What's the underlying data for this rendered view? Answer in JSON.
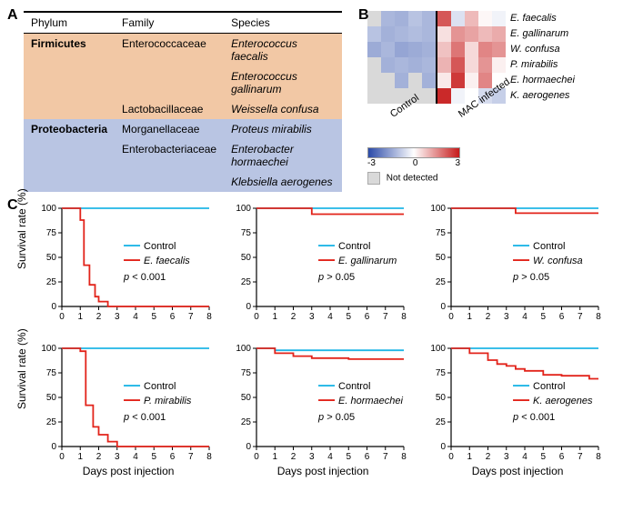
{
  "panel_labels": {
    "A": "A",
    "B": "B",
    "C": "C"
  },
  "table": {
    "headers": [
      "Phylum",
      "Family",
      "Species"
    ],
    "groups": [
      {
        "bg": "#f2c8a5",
        "rows": [
          {
            "phylum": "Firmicutes",
            "family": "Enterococcaceae",
            "species": "Enterococcus faecalis"
          },
          {
            "phylum": "",
            "family": "",
            "species": "Enterococcus gallinarum"
          },
          {
            "phylum": "",
            "family": "Lactobacillaceae",
            "species": "Weissella confusa"
          }
        ]
      },
      {
        "bg": "#b9c5e3",
        "rows": [
          {
            "phylum": "Proteobacteria",
            "family": "Morganellaceae",
            "species": "Proteus mirabilis"
          },
          {
            "phylum": "",
            "family": "Enterobacteriaceae",
            "species": "Enterobacter hormaechei"
          },
          {
            "phylum": "",
            "family": "",
            "species": "Klebsiella aerogenes"
          }
        ]
      }
    ]
  },
  "heatmap": {
    "row_labels": [
      "E. faecalis",
      "E. gallinarum",
      "W. confusa",
      "P. mirabilis",
      "E. hormaechei",
      "K. aerogenes"
    ],
    "col_groups": [
      {
        "label": "Control",
        "n": 5
      },
      {
        "label": "MAC infected",
        "n": 5
      }
    ],
    "not_detected_color": "#d9d9d9",
    "not_detected_label": "Not detected",
    "scale": {
      "min": -3,
      "mid": 0,
      "max": 3,
      "min_color": "#2b4aa8",
      "mid_color": "#ffffff",
      "max_color": "#c61a1a"
    },
    "values": [
      [
        null,
        -1.2,
        -1.3,
        -1.0,
        -1.2,
        2.2,
        -0.5,
        0.9,
        0.1,
        -0.2
      ],
      [
        -1.0,
        -1.3,
        -1.2,
        -1.1,
        -1.2,
        0.4,
        1.4,
        1.2,
        0.9,
        1.1
      ],
      [
        -1.4,
        -1.2,
        -1.5,
        -1.4,
        -1.3,
        0.8,
        1.8,
        0.5,
        1.6,
        1.4
      ],
      [
        null,
        -1.3,
        -1.2,
        -1.3,
        -1.2,
        1.0,
        2.2,
        0.5,
        1.4,
        0.2
      ],
      [
        null,
        null,
        -1.3,
        null,
        -1.3,
        0.3,
        2.6,
        0.2,
        1.6,
        0.0
      ],
      [
        null,
        null,
        null,
        null,
        null,
        2.8,
        -0.2,
        0.0,
        -0.6,
        -0.8
      ]
    ]
  },
  "survival": {
    "x": {
      "min": 0,
      "max": 8,
      "ticks": [
        0,
        1,
        2,
        3,
        4,
        5,
        6,
        7,
        8
      ],
      "label": "Days post injection"
    },
    "y": {
      "min": 0,
      "max": 100,
      "ticks": [
        0,
        25,
        50,
        75,
        100
      ],
      "label": "Survival rate (%)"
    },
    "control_color": "#1fb6e6",
    "treat_color": "#e2231a",
    "control_label": "Control",
    "line_width": 1.8,
    "plots": [
      {
        "species": "E. faecalis",
        "p": "p < 0.001",
        "control": [
          [
            0,
            100
          ],
          [
            8,
            100
          ]
        ],
        "treat": [
          [
            0,
            100
          ],
          [
            1,
            100
          ],
          [
            1,
            88
          ],
          [
            1.2,
            88
          ],
          [
            1.2,
            42
          ],
          [
            1.5,
            42
          ],
          [
            1.5,
            22
          ],
          [
            1.8,
            22
          ],
          [
            1.8,
            10
          ],
          [
            2,
            10
          ],
          [
            2,
            5
          ],
          [
            2.5,
            5
          ],
          [
            2.5,
            0
          ],
          [
            8,
            0
          ]
        ]
      },
      {
        "species": "E. gallinarum",
        "p": "p > 0.05",
        "control": [
          [
            0,
            100
          ],
          [
            8,
            100
          ]
        ],
        "treat": [
          [
            0,
            100
          ],
          [
            3,
            100
          ],
          [
            3,
            94
          ],
          [
            8,
            94
          ]
        ]
      },
      {
        "species": "W. confusa",
        "p": "p > 0.05",
        "control": [
          [
            0,
            100
          ],
          [
            8,
            100
          ]
        ],
        "treat": [
          [
            0,
            100
          ],
          [
            3.5,
            100
          ],
          [
            3.5,
            95
          ],
          [
            8,
            95
          ]
        ]
      },
      {
        "species": "P. mirabilis",
        "p": "p < 0.001",
        "control": [
          [
            0,
            100
          ],
          [
            8,
            100
          ]
        ],
        "treat": [
          [
            0,
            100
          ],
          [
            1,
            100
          ],
          [
            1,
            97
          ],
          [
            1.3,
            97
          ],
          [
            1.3,
            42
          ],
          [
            1.7,
            42
          ],
          [
            1.7,
            20
          ],
          [
            2,
            20
          ],
          [
            2,
            12
          ],
          [
            2.5,
            12
          ],
          [
            2.5,
            5
          ],
          [
            3,
            5
          ],
          [
            3,
            0
          ],
          [
            8,
            0
          ]
        ]
      },
      {
        "species": "E. hormaechei",
        "p": "p > 0.05",
        "control": [
          [
            0,
            100
          ],
          [
            1,
            100
          ],
          [
            1,
            98
          ],
          [
            8,
            98
          ]
        ],
        "treat": [
          [
            0,
            100
          ],
          [
            1,
            100
          ],
          [
            1,
            95
          ],
          [
            2,
            95
          ],
          [
            2,
            92
          ],
          [
            3,
            92
          ],
          [
            3,
            90
          ],
          [
            5,
            90
          ],
          [
            5,
            89
          ],
          [
            8,
            89
          ]
        ]
      },
      {
        "species": "K. aerogenes",
        "p": "p < 0.001",
        "control": [
          [
            0,
            100
          ],
          [
            8,
            100
          ]
        ],
        "treat": [
          [
            0,
            100
          ],
          [
            1,
            100
          ],
          [
            1,
            95
          ],
          [
            2,
            95
          ],
          [
            2,
            88
          ],
          [
            2.5,
            88
          ],
          [
            2.5,
            84
          ],
          [
            3,
            84
          ],
          [
            3,
            82
          ],
          [
            3.5,
            82
          ],
          [
            3.5,
            79
          ],
          [
            4,
            79
          ],
          [
            4,
            77
          ],
          [
            5,
            77
          ],
          [
            5,
            73
          ],
          [
            6,
            73
          ],
          [
            6,
            72
          ],
          [
            7.5,
            72
          ],
          [
            7.5,
            69
          ],
          [
            8,
            69
          ]
        ]
      }
    ]
  }
}
